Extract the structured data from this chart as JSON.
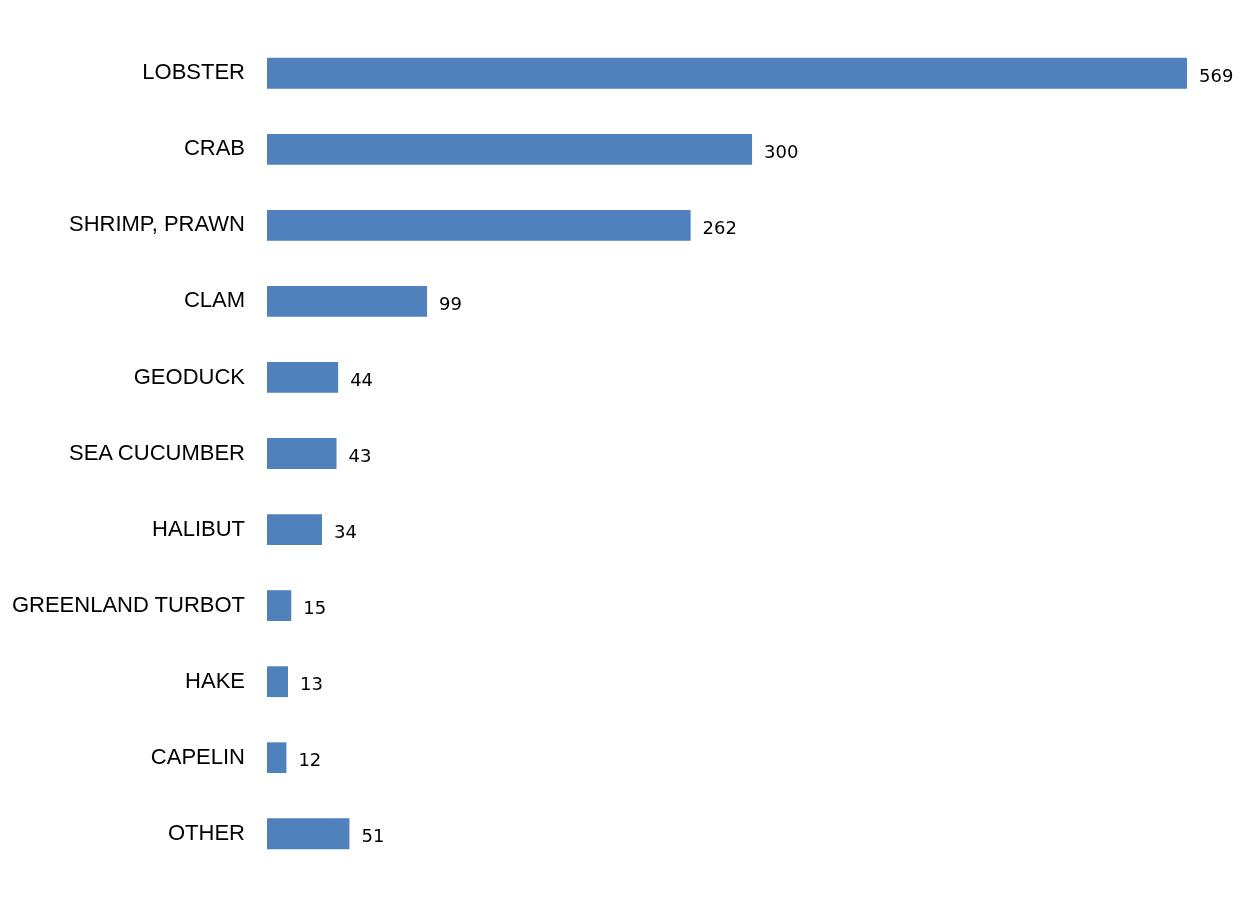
{
  "chart_data": {
    "type": "bar",
    "orientation": "horizontal",
    "categories": [
      "LOBSTER",
      "CRAB",
      "SHRIMP, PRAWN",
      "CLAM",
      "GEODUCK",
      "SEA CUCUMBER",
      "HALIBUT",
      "GREENLAND TURBOT",
      "HAKE",
      "CAPELIN",
      "OTHER"
    ],
    "values": [
      569,
      300,
      262,
      99,
      44,
      43,
      34,
      15,
      13,
      12,
      51
    ],
    "color": "#4f81bd",
    "tick_labels": "y",
    "grid": false,
    "data_labels": true
  }
}
